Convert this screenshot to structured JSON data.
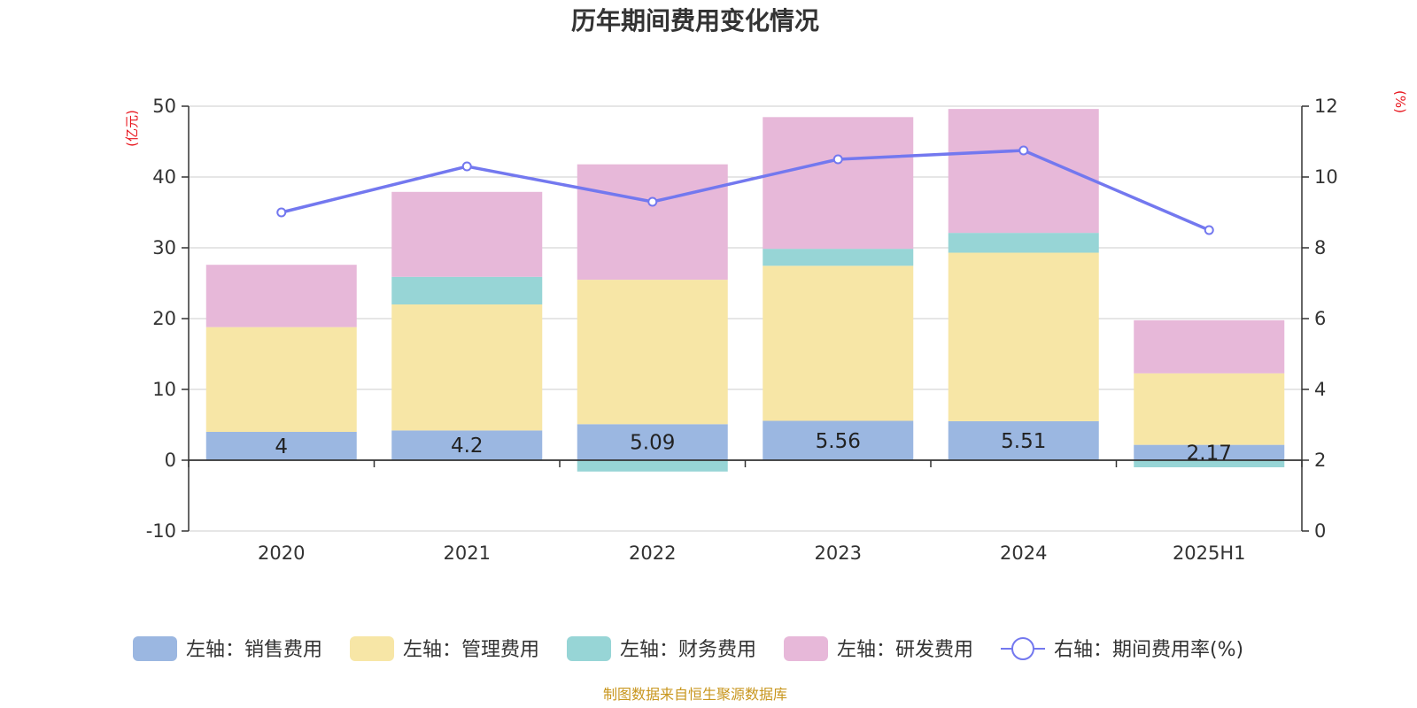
{
  "chart_data": {
    "type": "bar",
    "title": "历年期间费用变化情况",
    "categories": [
      "2020",
      "2021",
      "2022",
      "2023",
      "2024",
      "2025H1"
    ],
    "y_left": {
      "unit_label": "(亿元)",
      "ylim": [
        -10,
        50
      ],
      "ticks": [
        -10,
        0,
        10,
        20,
        30,
        40,
        50
      ]
    },
    "y_right": {
      "unit_label": "(%)",
      "ylim": [
        0,
        12
      ],
      "ticks": [
        0,
        2,
        4,
        6,
        8,
        10,
        12
      ]
    },
    "grid": true,
    "legend_position": "bottom",
    "series": [
      {
        "name": "左轴：销售费用",
        "type": "bar",
        "axis": "left",
        "color": "#9bb7e1",
        "values": [
          4,
          4.2,
          5.09,
          5.56,
          5.51,
          2.17
        ],
        "show_labels": true
      },
      {
        "name": "左轴：管理费用",
        "type": "bar",
        "axis": "left",
        "color": "#f7e6a6",
        "values": [
          14.8,
          17.8,
          20.4,
          21.9,
          23.8,
          10.1
        ]
      },
      {
        "name": "左轴：财务费用",
        "type": "bar",
        "axis": "left",
        "color": "#97d5d6",
        "values": [
          0,
          3.9,
          -1.6,
          2.4,
          2.8,
          -1.0
        ]
      },
      {
        "name": "左轴：研发费用",
        "type": "bar",
        "axis": "left",
        "color": "#e7b8d9",
        "values": [
          8.8,
          12.0,
          16.3,
          18.6,
          17.5,
          7.5
        ]
      },
      {
        "name": "右轴：期间费用率(%)",
        "type": "line",
        "axis": "right",
        "color": "#7378ef",
        "values": [
          9.0,
          10.3,
          9.3,
          10.5,
          10.75,
          8.5
        ]
      }
    ],
    "source": "制图数据来自恒生聚源数据库"
  }
}
